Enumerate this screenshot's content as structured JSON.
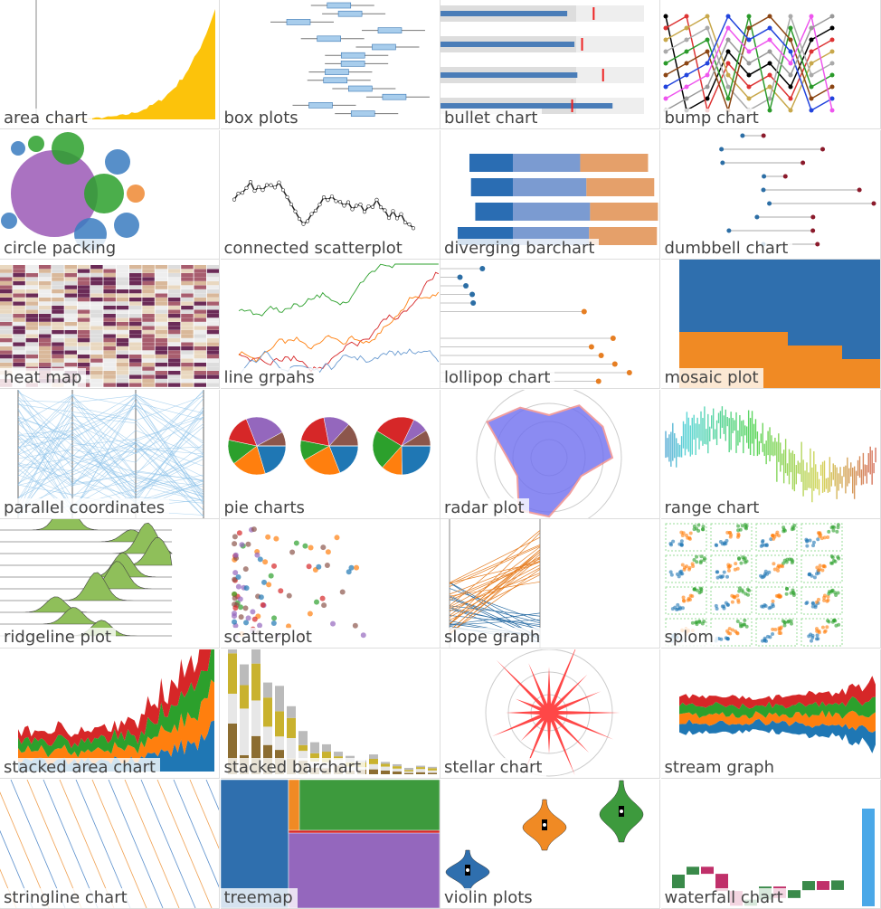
{
  "tiles": [
    {
      "label": "area chart"
    },
    {
      "label": "box plots"
    },
    {
      "label": "bullet chart"
    },
    {
      "label": "bump chart"
    },
    {
      "label": "circle packing"
    },
    {
      "label": "connected scatterplot"
    },
    {
      "label": "diverging barchart"
    },
    {
      "label": "dumbbell chart"
    },
    {
      "label": "heat map"
    },
    {
      "label": "line grpahs"
    },
    {
      "label": "lollipop chart"
    },
    {
      "label": "mosaic plot"
    },
    {
      "label": "parallel coordinates"
    },
    {
      "label": "pie charts"
    },
    {
      "label": "radar plot"
    },
    {
      "label": "range chart"
    },
    {
      "label": "ridgeline plot"
    },
    {
      "label": "scatterplot"
    },
    {
      "label": "slope graph"
    },
    {
      "label": "splom"
    },
    {
      "label": "stacked area chart"
    },
    {
      "label": "stacked barchart"
    },
    {
      "label": "stellar chart"
    },
    {
      "label": "stream graph"
    },
    {
      "label": "stringline chart"
    },
    {
      "label": "treemap"
    },
    {
      "label": "violin plots"
    },
    {
      "label": "waterfall chart"
    }
  ]
}
